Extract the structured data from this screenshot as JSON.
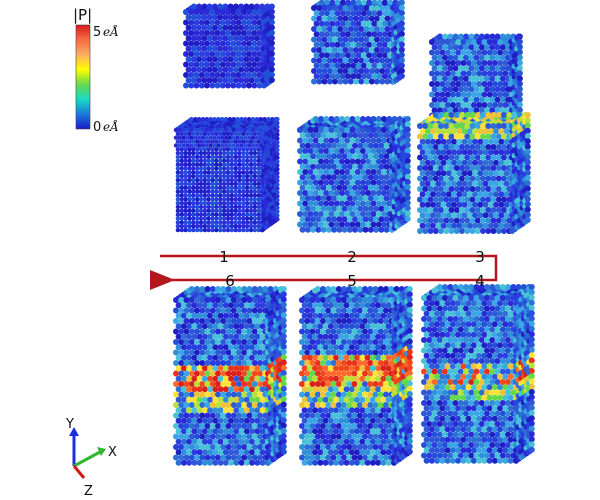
{
  "colorbar": {
    "title": "|P|",
    "max_label": "5",
    "min_label": "0",
    "unit": "eÅ",
    "stops": [
      "#d7191c",
      "#f46d43",
      "#fdae61",
      "#ffff00",
      "#66d94a",
      "#1ad9c6",
      "#1a7bd9",
      "#1a1acc"
    ]
  },
  "path": {
    "color": "#b5161c",
    "labels": [
      "1",
      "2",
      "3",
      "4",
      "5",
      "6"
    ]
  },
  "axes": {
    "x_label": "X",
    "y_label": "Y",
    "z_label": "Z",
    "x_color": "#2fb82f",
    "y_color": "#1a2fd9",
    "z_color": "#d01818"
  },
  "atoms": {
    "low_color": "#2a2ad6",
    "mid_color": "#2f8fd9",
    "high_color": "#d9221c"
  }
}
